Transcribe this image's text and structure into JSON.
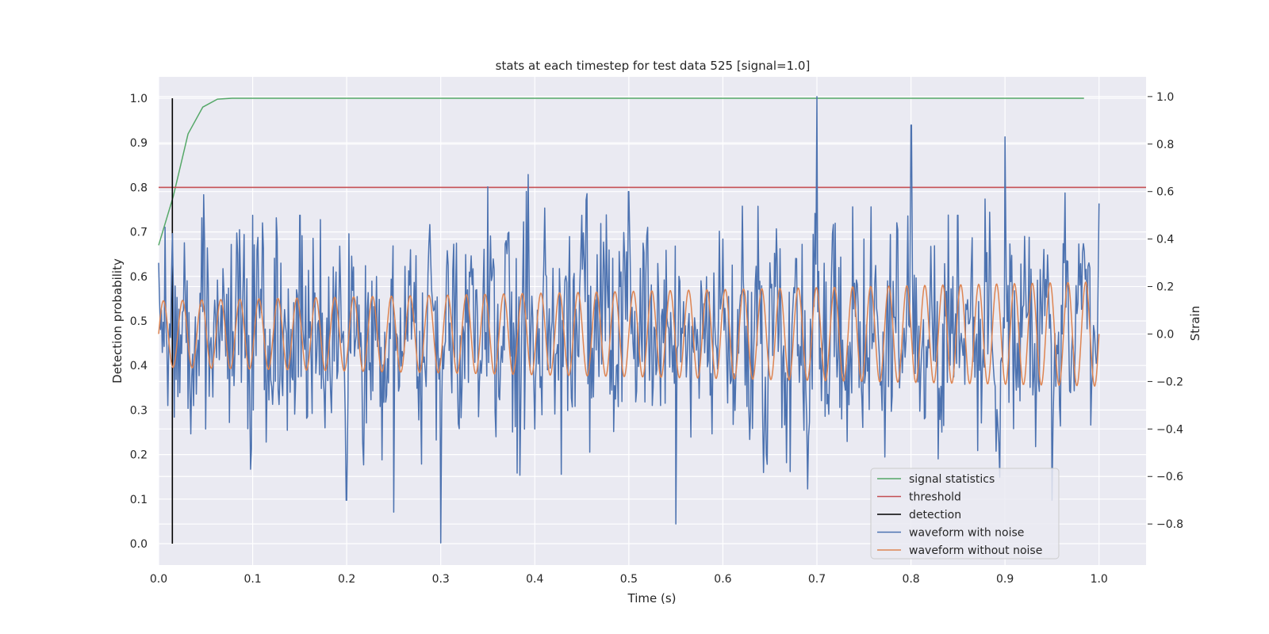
{
  "chart_data": {
    "type": "line",
    "title": "stats at each timestep for test data 525 [signal=1.0]",
    "xlabel": "Time (s)",
    "ylabel": "Detection probability",
    "y2label": "Strain",
    "xlim": [
      0.0,
      1.05
    ],
    "ylim": [
      -0.048,
      1.048
    ],
    "y2lim": [
      -0.973,
      1.083
    ],
    "xticks": [
      "0.0",
      "0.1",
      "0.2",
      "0.3",
      "0.4",
      "0.5",
      "0.6",
      "0.7",
      "0.8",
      "0.9",
      "1.0"
    ],
    "yticks": [
      "0.0",
      "0.1",
      "0.2",
      "0.3",
      "0.4",
      "0.5",
      "0.6",
      "0.7",
      "0.8",
      "0.9",
      "1.0"
    ],
    "y2ticks": [
      "−0.8",
      "−0.6",
      "−0.4",
      "−0.2",
      "0.0",
      "0.2",
      "0.4",
      "0.6",
      "0.8",
      "1.0"
    ],
    "grid": true,
    "legend_position": "lower-right",
    "series": [
      {
        "name": "signal statistics",
        "axis": "left",
        "color": "#55a868",
        "x": [
          0.0,
          0.0156,
          0.0313,
          0.0469,
          0.0625,
          0.0781,
          0.1,
          0.2,
          0.3,
          0.4,
          0.5,
          0.6,
          0.7,
          0.8,
          0.9,
          0.984
        ],
        "values": [
          0.67,
          0.78,
          0.92,
          0.98,
          0.998,
          1.0,
          1.0,
          1.0,
          1.0,
          1.0,
          1.0,
          1.0,
          1.0,
          1.0,
          1.0,
          1.0
        ]
      },
      {
        "name": "threshold",
        "axis": "left",
        "color": "#c44e52",
        "x": [
          0.0,
          1.05
        ],
        "values": [
          0.8,
          0.8
        ]
      },
      {
        "name": "detection",
        "axis": "left",
        "color": "#000000",
        "x": [
          0.0146,
          0.0146
        ],
        "values": [
          0.0,
          1.0
        ]
      },
      {
        "name": "waveform with noise",
        "axis": "right",
        "color": "#4c72b0",
        "noise_amplitude_note": "dense noisy trace, strain between about -0.88 and 1.0",
        "x": [
          0.0,
          0.05,
          0.1,
          0.15,
          0.2,
          0.25,
          0.3,
          0.35,
          0.4,
          0.45,
          0.5,
          0.55,
          0.6,
          0.65,
          0.7,
          0.75,
          0.8,
          0.85,
          0.9,
          0.95,
          1.0
        ],
        "values": [
          0.3,
          -0.4,
          0.5,
          0.5,
          -0.7,
          -0.75,
          -0.88,
          0.62,
          -0.4,
          0.5,
          0.6,
          -0.8,
          0.4,
          0.3,
          1.0,
          0.4,
          0.88,
          0.5,
          0.83,
          -0.7,
          0.55
        ]
      },
      {
        "name": "waveform without noise",
        "axis": "right",
        "color": "#dd8452",
        "amplitude_start": 0.14,
        "amplitude_end": 0.22,
        "approx_cycles": 49,
        "x": [
          0.0,
          1.0
        ],
        "values": [
          0.0,
          0.0
        ]
      }
    ]
  },
  "colors": {
    "plot_background": "#eaeaf2",
    "grid": "#ffffff",
    "text": "#262626"
  }
}
